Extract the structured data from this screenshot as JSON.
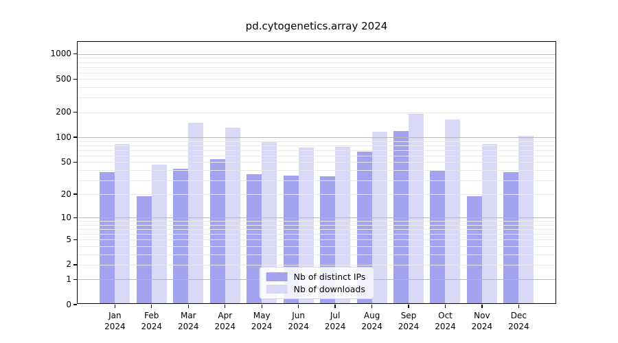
{
  "figure": {
    "title": "pd.cytogenetics.array 2024",
    "background_color": "#ffffff"
  },
  "chart_data": {
    "type": "bar",
    "title": "pd.cytogenetics.array 2024",
    "categories": [
      "Jan",
      "Feb",
      "Mar",
      "Apr",
      "May",
      "Jun",
      "Jul",
      "Aug",
      "Sep",
      "Oct",
      "Nov",
      "Dec"
    ],
    "category_year": "2024",
    "series": [
      {
        "name": "Nb of distinct IPs",
        "color": "#a2a2ef",
        "values": [
          36,
          18,
          40,
          52,
          34,
          33,
          32,
          65,
          115,
          38,
          18,
          36
        ]
      },
      {
        "name": "Nb of downloads",
        "color": "#d9d9f7",
        "values": [
          80,
          45,
          143,
          127,
          85,
          73,
          74,
          112,
          185,
          158,
          80,
          100
        ]
      }
    ],
    "xlabel": "",
    "ylabel": "",
    "y_axis": {
      "scale": "log10(value+1)",
      "ticks": [
        0,
        1,
        2,
        5,
        10,
        20,
        50,
        100,
        200,
        500,
        1000
      ],
      "ylim": [
        0,
        1380
      ],
      "major_gridlines": [
        1,
        10,
        100,
        1000
      ],
      "minor_gridline_decades": [
        1,
        10,
        100
      ]
    },
    "grid": true,
    "legend_position": "bottom-center",
    "colors": {
      "major_grid": "#b8b8b8",
      "minor_grid": "#e9e9e9",
      "axis": "#000000"
    }
  }
}
